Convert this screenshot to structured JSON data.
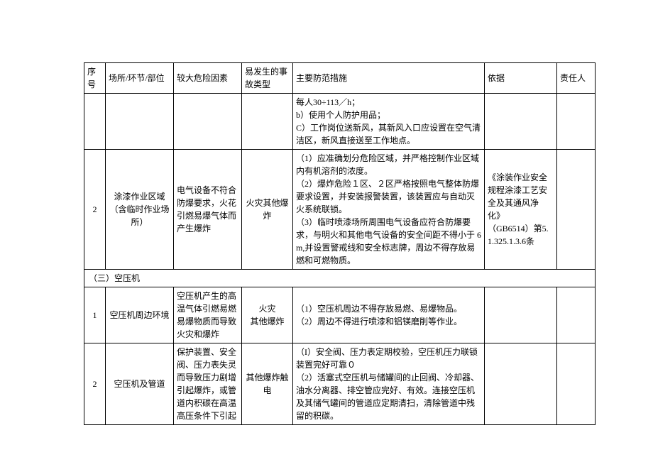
{
  "headers": {
    "seq": "序号",
    "place": "场所/环节/部位",
    "risk": "较大危险因素",
    "type": "易发生的事故类型",
    "measure": "主要防范措施",
    "basis": "依据",
    "resp": "责任人"
  },
  "row_cont": {
    "measure": "每人30÷113／h；\nb）使用个人防护用品；\nC）工作岗位送新风，其新风入口应设置在空气清洁区，新风直接送至工作地点。"
  },
  "row2": {
    "seq": "2",
    "place": "涂漆作业区域（含临时作业场所）",
    "risk": "电气设备不符合防爆要求，火花引燃易爆气体而产生爆炸",
    "type": "火灾其他爆炸",
    "measure": "（1）应准确划分危险区域，并严格控制作业区域内有机溶剂的浓度。\n（2）爆炸危险１区、２区严格按照电气整体防爆要求设置，并安装报警装置，该装置应与自动灭火系统联锁。\n（3）临时喷漆场所周围电气设备应符合防爆要求，与明火和其他电气设备的安全间距不得小于 6m,并设置警戒线和安全标志牌，周边不得存放易燃和可燃物质。",
    "basis": "《涂装作业安全规程涂漆工艺安全及其通风净化》\n（GB6514）第5.1.325.1.3.6条"
  },
  "section3": "（三）空压机",
  "s3r1": {
    "seq": "1",
    "place": "空压机周边环境",
    "risk": "空压机产生的高温气体引燃易燃易爆物质而导致火灾和爆炸",
    "type": "火灾\n其他爆炸",
    "measure": "（1）空压机周边不得存放易燃、易爆物品。\n（2）周边不得进行喷漆和铝镁磨削等作业。"
  },
  "s3r2": {
    "seq": "2",
    "place": "空压机及管道",
    "risk": "保护装置、安全阀、压力表失灵而导致压力剧增引起爆炸，或管道内积碳在高温高压条件下引起",
    "type": "其他爆炸触电",
    "measure": "（I）安全阀、压力表定期校验，空压机压力联锁装置完好可靠０\n（2）活塞式空压机与储罐间的止回阀、冷却器、油水分离器、排空管应完好、有效。连接空压机及其储气罐间的管道应定期清扫，清除管道中残留的积碳。"
  }
}
